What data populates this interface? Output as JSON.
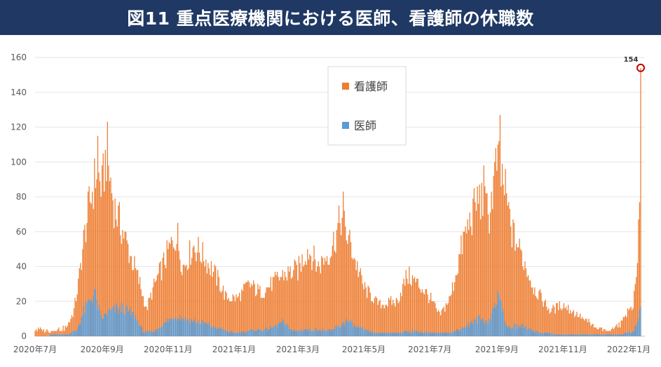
{
  "header": {
    "title": "図11 重点医療機関における医師、看護師の休職数"
  },
  "chart_data": {
    "type": "bar",
    "stacked": true,
    "grid": true,
    "legend_position": "top-center",
    "ylim": [
      0,
      160
    ],
    "yticks": [
      0,
      20,
      40,
      60,
      80,
      100,
      120,
      140,
      160
    ],
    "xticks": [
      {
        "label": "2020年7月",
        "date": "2020-07-01"
      },
      {
        "label": "2020年9月",
        "date": "2020-09-01"
      },
      {
        "label": "2020年11月",
        "date": "2020-11-01"
      },
      {
        "label": "2021年1月",
        "date": "2021-01-01"
      },
      {
        "label": "2021年3月",
        "date": "2021-03-01"
      },
      {
        "label": "2021年5月",
        "date": "2021-05-01"
      },
      {
        "label": "2021年7月",
        "date": "2021-07-01"
      },
      {
        "label": "2021年9月",
        "date": "2021-09-01"
      },
      {
        "label": "2021年11月",
        "date": "2021-11-01"
      },
      {
        "label": "2022年1月",
        "date": "2022-01-01"
      }
    ],
    "period": {
      "start": "2020-07-01",
      "end": "2022-01-12",
      "interval": "daily"
    },
    "series": [
      {
        "name": "看護師",
        "color": "#ed7d31",
        "role": "total"
      },
      {
        "name": "医師",
        "color": "#5b9bd5",
        "role": "base"
      }
    ],
    "doctor_profile": [
      {
        "date": "2020-07-01",
        "value": 0
      },
      {
        "date": "2020-07-31",
        "value": 1
      },
      {
        "date": "2020-08-08",
        "value": 3
      },
      {
        "date": "2020-08-15",
        "value": 14
      },
      {
        "date": "2020-08-20",
        "value": 20
      },
      {
        "date": "2020-08-25",
        "value": 25
      },
      {
        "date": "2020-08-31",
        "value": 10
      },
      {
        "date": "2020-09-10",
        "value": 15
      },
      {
        "date": "2020-09-20",
        "value": 16
      },
      {
        "date": "2020-10-01",
        "value": 12
      },
      {
        "date": "2020-10-10",
        "value": 2
      },
      {
        "date": "2020-10-20",
        "value": 3
      },
      {
        "date": "2020-11-01",
        "value": 9
      },
      {
        "date": "2020-11-10",
        "value": 12
      },
      {
        "date": "2020-11-20",
        "value": 9
      },
      {
        "date": "2020-12-01",
        "value": 8
      },
      {
        "date": "2020-12-15",
        "value": 5
      },
      {
        "date": "2020-12-31",
        "value": 2
      },
      {
        "date": "2021-01-15",
        "value": 3
      },
      {
        "date": "2021-02-01",
        "value": 4
      },
      {
        "date": "2021-02-15",
        "value": 8
      },
      {
        "date": "2021-02-25",
        "value": 3
      },
      {
        "date": "2021-03-15",
        "value": 4
      },
      {
        "date": "2021-04-01",
        "value": 3
      },
      {
        "date": "2021-04-15",
        "value": 9
      },
      {
        "date": "2021-04-25",
        "value": 5
      },
      {
        "date": "2021-05-10",
        "value": 2
      },
      {
        "date": "2021-06-01",
        "value": 2
      },
      {
        "date": "2021-06-15",
        "value": 3
      },
      {
        "date": "2021-07-01",
        "value": 2
      },
      {
        "date": "2021-07-20",
        "value": 2
      },
      {
        "date": "2021-08-01",
        "value": 5
      },
      {
        "date": "2021-08-15",
        "value": 10
      },
      {
        "date": "2021-08-25",
        "value": 9
      },
      {
        "date": "2021-09-01",
        "value": 22
      },
      {
        "date": "2021-09-06",
        "value": 18
      },
      {
        "date": "2021-09-10",
        "value": 5
      },
      {
        "date": "2021-09-25",
        "value": 6
      },
      {
        "date": "2021-10-10",
        "value": 2
      },
      {
        "date": "2021-11-01",
        "value": 1
      },
      {
        "date": "2021-12-01",
        "value": 1
      },
      {
        "date": "2021-12-25",
        "value": 1
      },
      {
        "date": "2022-01-05",
        "value": 3
      },
      {
        "date": "2022-01-10",
        "value": 10
      },
      {
        "date": "2022-01-12",
        "value": 14
      }
    ],
    "total_profile": [
      {
        "date": "2020-07-01",
        "value": 4
      },
      {
        "date": "2020-07-15",
        "value": 3
      },
      {
        "date": "2020-07-31",
        "value": 5
      },
      {
        "date": "2020-08-06",
        "value": 15
      },
      {
        "date": "2020-08-10",
        "value": 30
      },
      {
        "date": "2020-08-15",
        "value": 55
      },
      {
        "date": "2020-08-20",
        "value": 75
      },
      {
        "date": "2020-08-27",
        "value": 95
      },
      {
        "date": "2020-09-01",
        "value": 85
      },
      {
        "date": "2020-09-05",
        "value": 105
      },
      {
        "date": "2020-09-12",
        "value": 75
      },
      {
        "date": "2020-09-20",
        "value": 60
      },
      {
        "date": "2020-09-28",
        "value": 45
      },
      {
        "date": "2020-10-06",
        "value": 30
      },
      {
        "date": "2020-10-12",
        "value": 15
      },
      {
        "date": "2020-10-20",
        "value": 30
      },
      {
        "date": "2020-11-01",
        "value": 48
      },
      {
        "date": "2020-11-08",
        "value": 58
      },
      {
        "date": "2020-11-15",
        "value": 40
      },
      {
        "date": "2020-11-25",
        "value": 52
      },
      {
        "date": "2020-12-05",
        "value": 45
      },
      {
        "date": "2020-12-15",
        "value": 35
      },
      {
        "date": "2020-12-25",
        "value": 22
      },
      {
        "date": "2021-01-05",
        "value": 22
      },
      {
        "date": "2021-01-15",
        "value": 30
      },
      {
        "date": "2021-01-25",
        "value": 25
      },
      {
        "date": "2021-02-01",
        "value": 28
      },
      {
        "date": "2021-02-15",
        "value": 35
      },
      {
        "date": "2021-03-01",
        "value": 38
      },
      {
        "date": "2021-03-10",
        "value": 50
      },
      {
        "date": "2021-03-20",
        "value": 40
      },
      {
        "date": "2021-04-01",
        "value": 50
      },
      {
        "date": "2021-04-10",
        "value": 68
      },
      {
        "date": "2021-04-20",
        "value": 50
      },
      {
        "date": "2021-05-01",
        "value": 28
      },
      {
        "date": "2021-05-15",
        "value": 18
      },
      {
        "date": "2021-06-01",
        "value": 20
      },
      {
        "date": "2021-06-10",
        "value": 35
      },
      {
        "date": "2021-06-20",
        "value": 30
      },
      {
        "date": "2021-07-01",
        "value": 22
      },
      {
        "date": "2021-07-10",
        "value": 12
      },
      {
        "date": "2021-07-20",
        "value": 22
      },
      {
        "date": "2021-08-01",
        "value": 55
      },
      {
        "date": "2021-08-15",
        "value": 80
      },
      {
        "date": "2021-08-25",
        "value": 70
      },
      {
        "date": "2021-09-01",
        "value": 100
      },
      {
        "date": "2021-09-08",
        "value": 85
      },
      {
        "date": "2021-09-15",
        "value": 60
      },
      {
        "date": "2021-09-25",
        "value": 45
      },
      {
        "date": "2021-10-05",
        "value": 28
      },
      {
        "date": "2021-10-20",
        "value": 15
      },
      {
        "date": "2021-11-01",
        "value": 18
      },
      {
        "date": "2021-11-15",
        "value": 12
      },
      {
        "date": "2021-12-01",
        "value": 5
      },
      {
        "date": "2021-12-15",
        "value": 3
      },
      {
        "date": "2021-12-25",
        "value": 8
      },
      {
        "date": "2022-01-05",
        "value": 18
      },
      {
        "date": "2022-01-09",
        "value": 45
      },
      {
        "date": "2022-01-11",
        "value": 70
      },
      {
        "date": "2022-01-12",
        "value": 154
      }
    ],
    "peaks": [
      {
        "date": "2020-08-28",
        "total": 115
      },
      {
        "date": "2020-09-06",
        "total": 123
      },
      {
        "date": "2020-11-10",
        "total": 65
      },
      {
        "date": "2021-04-12",
        "total": 83
      },
      {
        "date": "2021-08-20",
        "total": 98
      },
      {
        "date": "2021-09-04",
        "total": 127
      }
    ],
    "annotation": {
      "text": "154",
      "date": "2022-01-12",
      "value": 154
    }
  }
}
